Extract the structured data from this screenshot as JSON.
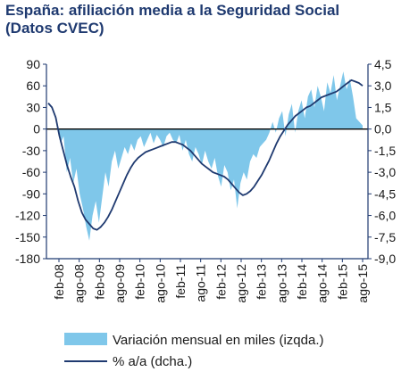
{
  "title_line1": "España: afiliación media a la Seguridad Social",
  "title_line2": "(Datos CVEC)",
  "chart_data": {
    "type": "area+line",
    "colors": {
      "area": "#7fc7ea",
      "line": "#1f3a70",
      "axis": "#1f3a70",
      "zero": "#000000"
    },
    "x_labels": [
      "feb-08",
      "ago-08",
      "feb-09",
      "ago-09",
      "feb-10",
      "ago-10",
      "feb-11",
      "ago-11",
      "feb-12",
      "ago-12",
      "feb-13",
      "ago-13",
      "feb-14",
      "ago-14",
      "feb-15",
      "ago-15"
    ],
    "y_left": {
      "min": -180,
      "max": 90,
      "ticks": [
        "90",
        "60",
        "30",
        "0",
        "-30",
        "-60",
        "-90",
        "-120",
        "-150",
        "-180"
      ]
    },
    "y_right": {
      "min": -9,
      "max": 4.5,
      "ticks": [
        "4,5",
        "3,0",
        "1,5",
        "0,0",
        "-1,5",
        "-3,0",
        "-4,5",
        "-6,0",
        "-7,5",
        "-9,0"
      ]
    },
    "series": [
      {
        "name": "Variación mensual en miles (izqda.)",
        "axis": "left",
        "type": "area",
        "values": [
          5,
          -20,
          -10,
          -60,
          -40,
          -75,
          -55,
          -90,
          -110,
          -135,
          -155,
          -120,
          -100,
          -130,
          -95,
          -60,
          -80,
          -45,
          -30,
          -55,
          -40,
          -25,
          -35,
          -20,
          -30,
          -15,
          -10,
          -25,
          -15,
          -5,
          -20,
          -8,
          -15,
          -25,
          -10,
          -5,
          -15,
          -20,
          -8,
          -30,
          -15,
          -35,
          -45,
          -25,
          -35,
          -50,
          -30,
          -45,
          -55,
          -40,
          -65,
          -80,
          -50,
          -60,
          -85,
          -70,
          -110,
          -75,
          -60,
          -70,
          -45,
          -35,
          -40,
          -25,
          -20,
          -15,
          -5,
          10,
          -5,
          15,
          25,
          -10,
          20,
          35,
          -5,
          25,
          40,
          15,
          45,
          55,
          30,
          60,
          45,
          25,
          65,
          50,
          75,
          40,
          60,
          80,
          55,
          70,
          45,
          15,
          10,
          5
        ]
      },
      {
        "name": "% a/a (dcha.)",
        "axis": "right",
        "type": "line",
        "values": [
          1.8,
          1.5,
          0.8,
          -0.5,
          -1.5,
          -2.5,
          -3.3,
          -4.0,
          -5.0,
          -5.8,
          -6.3,
          -6.6,
          -6.9,
          -7.0,
          -6.8,
          -6.5,
          -6.1,
          -5.6,
          -5.0,
          -4.4,
          -3.8,
          -3.2,
          -2.7,
          -2.3,
          -2.0,
          -1.8,
          -1.6,
          -1.5,
          -1.4,
          -1.3,
          -1.2,
          -1.1,
          -1.0,
          -0.9,
          -0.9,
          -1.0,
          -1.1,
          -1.3,
          -1.5,
          -1.8,
          -2.1,
          -2.4,
          -2.6,
          -2.8,
          -3.0,
          -3.1,
          -3.2,
          -3.3,
          -3.5,
          -3.8,
          -4.1,
          -4.4,
          -4.6,
          -4.5,
          -4.3,
          -4.0,
          -3.6,
          -3.2,
          -2.7,
          -2.2,
          -1.6,
          -1.0,
          -0.5,
          -0.1,
          0.3,
          0.6,
          0.9,
          1.1,
          1.3,
          1.5,
          1.6,
          1.8,
          2.0,
          2.2,
          2.3,
          2.4,
          2.5,
          2.6,
          2.8,
          3.0,
          3.2,
          3.4,
          3.3,
          3.2,
          3.0
        ]
      }
    ],
    "legend": {
      "position": "bottom",
      "entries": [
        "Variación mensual en miles (izqda.)",
        "% a/a (dcha.)"
      ]
    }
  }
}
